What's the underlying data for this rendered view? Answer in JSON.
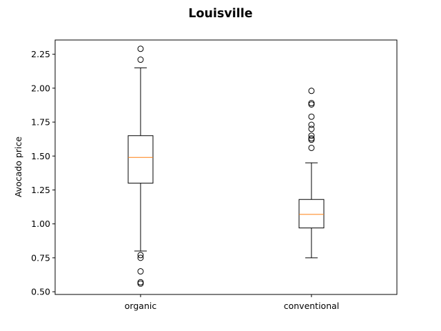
{
  "chart_data": {
    "type": "box",
    "title": "Louisville",
    "xlabel": "",
    "ylabel": "Avocado price",
    "categories": [
      "organic",
      "conventional"
    ],
    "ylim": [
      0.48,
      2.355
    ],
    "yticks": [
      "0.50",
      "0.75",
      "1.00",
      "1.25",
      "1.50",
      "1.75",
      "2.00",
      "2.25"
    ],
    "grid": false,
    "box_color": "#000000",
    "median_color": "#ff7f0e",
    "boxes": [
      {
        "name": "organic",
        "whisker_low": 0.8,
        "q1": 1.3,
        "median": 1.49,
        "q3": 1.65,
        "whisker_high": 2.15,
        "fliers": [
          2.29,
          2.21,
          0.77,
          0.75,
          0.65,
          0.57,
          0.56
        ]
      },
      {
        "name": "conventional",
        "whisker_low": 0.75,
        "q1": 0.97,
        "median": 1.07,
        "q3": 1.18,
        "whisker_high": 1.45,
        "fliers": [
          1.98,
          1.89,
          1.88,
          1.79,
          1.73,
          1.7,
          1.65,
          1.63,
          1.62,
          1.56
        ]
      }
    ]
  }
}
